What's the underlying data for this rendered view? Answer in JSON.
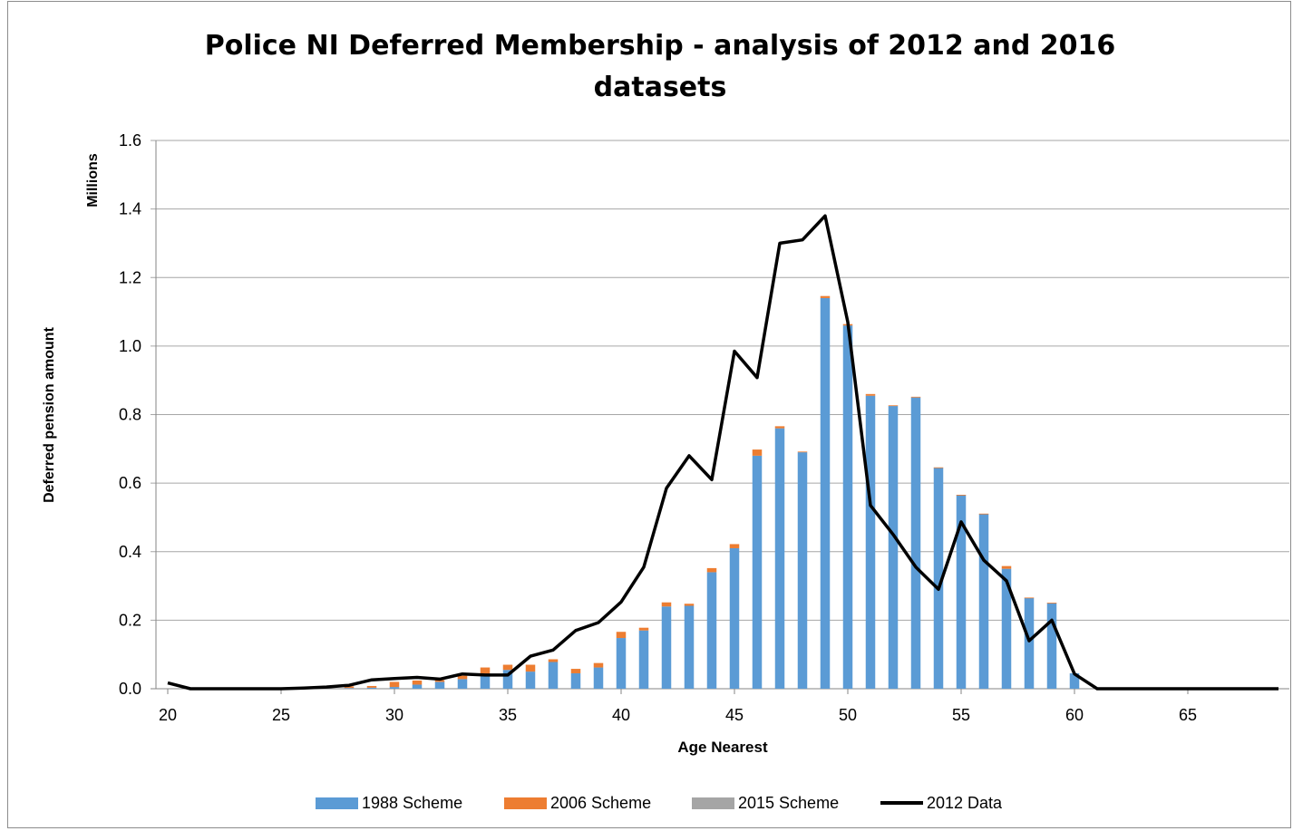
{
  "chart_data": {
    "type": "bar",
    "title_line1": "Police NI Deferred Membership - analysis of 2012 and 2016",
    "title_line2": "datasets",
    "ylabel": "Deferred pension amount",
    "yunits": "Millions",
    "xlabel": "Age Nearest",
    "ylim": [
      0,
      1.6
    ],
    "xlim": [
      20,
      69
    ],
    "yticks": [
      "0.0",
      "0.2",
      "0.4",
      "0.6",
      "0.8",
      "1.0",
      "1.2",
      "1.4",
      "1.6"
    ],
    "xticks": [
      "20",
      "25",
      "30",
      "35",
      "40",
      "45",
      "50",
      "55",
      "60",
      "65"
    ],
    "stacked": true,
    "grid": true,
    "legend_position": "bottom",
    "ages": [
      20,
      21,
      22,
      23,
      24,
      25,
      26,
      27,
      28,
      29,
      30,
      31,
      32,
      33,
      34,
      35,
      36,
      37,
      38,
      39,
      40,
      41,
      42,
      43,
      44,
      45,
      46,
      47,
      48,
      49,
      50,
      51,
      52,
      53,
      54,
      55,
      56,
      57,
      58,
      59,
      60,
      61,
      62,
      63,
      64,
      65,
      66,
      67,
      68,
      69
    ],
    "series": [
      {
        "name": "1988 Scheme",
        "kind": "bar",
        "color": "#5b9bd5",
        "values": [
          0,
          0,
          0,
          0,
          0,
          0,
          0,
          0,
          0.002,
          0.003,
          0.005,
          0.012,
          0.02,
          0.028,
          0.04,
          0.055,
          0.05,
          0.078,
          0.045,
          0.062,
          0.148,
          0.17,
          0.24,
          0.242,
          0.34,
          0.41,
          0.68,
          0.76,
          0.69,
          1.14,
          1.06,
          0.855,
          0.825,
          0.85,
          0.645,
          0.565,
          0.51,
          0.35,
          0.265,
          0.25,
          0.045,
          0,
          0,
          0,
          0,
          0,
          0,
          0,
          0,
          0
        ]
      },
      {
        "name": "2006 Scheme",
        "kind": "bar",
        "color": "#ed7d31",
        "values": [
          0,
          0,
          0,
          0,
          0,
          0,
          0,
          0,
          0.005,
          0.005,
          0.015,
          0.012,
          0.005,
          0.01,
          0.022,
          0.015,
          0.02,
          0.008,
          0.013,
          0.013,
          0.018,
          0.008,
          0.012,
          0.006,
          0.012,
          0.012,
          0.018,
          0.006,
          0.002,
          0.006,
          0.004,
          0.005,
          0.002,
          0.002,
          0.001,
          0.001,
          0.001,
          0.008,
          0.001,
          0.001,
          0,
          0,
          0,
          0,
          0,
          0,
          0,
          0,
          0,
          0
        ]
      },
      {
        "name": "2015 Scheme",
        "kind": "bar",
        "color": "#a5a5a5",
        "values": [
          0,
          0,
          0,
          0,
          0,
          0,
          0,
          0,
          0,
          0,
          0,
          0,
          0,
          0,
          0,
          0,
          0,
          0,
          0,
          0,
          0,
          0,
          0,
          0,
          0,
          0,
          0,
          0,
          0,
          0,
          0,
          0,
          0,
          0,
          0,
          0,
          0,
          0,
          0,
          0,
          0,
          0,
          0,
          0,
          0,
          0,
          0,
          0,
          0,
          0
        ]
      },
      {
        "name": "2012 Data",
        "kind": "line",
        "color": "#000000",
        "values": [
          0.017,
          0,
          0,
          0,
          0,
          0,
          0.002,
          0.005,
          0.01,
          0.026,
          0.03,
          0.033,
          0.028,
          0.043,
          0.04,
          0.04,
          0.095,
          0.113,
          0.17,
          0.193,
          0.253,
          0.355,
          0.585,
          0.68,
          0.61,
          0.985,
          0.908,
          1.3,
          1.31,
          1.38,
          1.07,
          0.535,
          0.45,
          0.355,
          0.29,
          0.487,
          0.375,
          0.315,
          0.14,
          0.2,
          0.043,
          0,
          0,
          0,
          0,
          0,
          0,
          0,
          0,
          0
        ]
      }
    ]
  }
}
